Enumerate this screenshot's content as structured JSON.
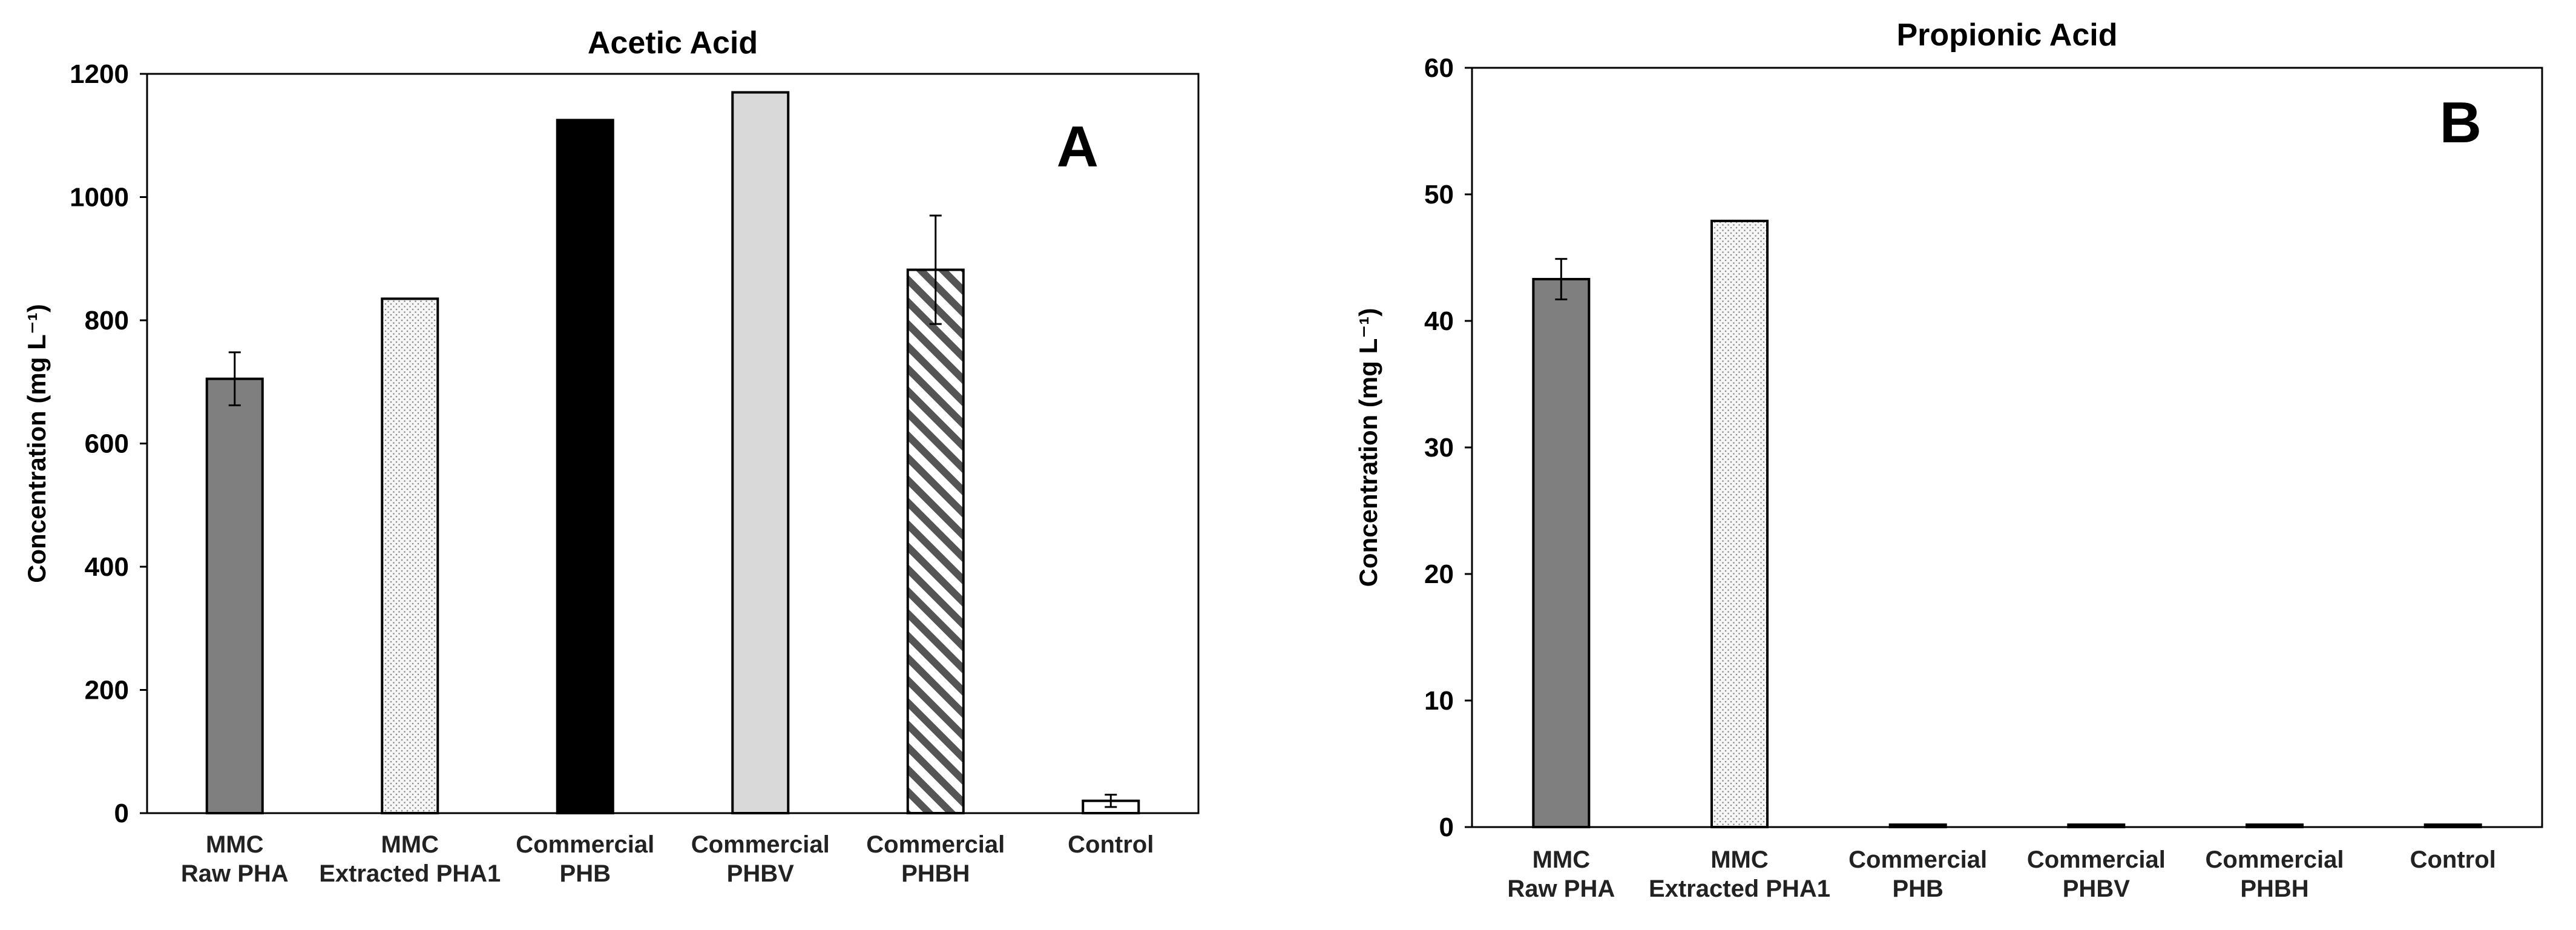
{
  "chart_data": [
    {
      "type": "bar",
      "panel_label": "A",
      "title": "Acetic Acid",
      "ylabel": "Concentration (mg L⁻¹)",
      "xlabel": "",
      "ylim": [
        0,
        1200
      ],
      "yticks": [
        0,
        200,
        400,
        600,
        800,
        1000,
        1200
      ],
      "grid": false,
      "categories": [
        [
          "MMC",
          "Raw PHA"
        ],
        [
          "MMC",
          "Extracted PHA1"
        ],
        [
          "Commercial",
          "PHB"
        ],
        [
          "Commercial",
          "PHBV"
        ],
        [
          "Commercial",
          "PHBH"
        ],
        [
          "Control"
        ]
      ],
      "values": [
        705,
        835,
        1125,
        1170,
        882,
        20
      ],
      "errors": [
        43,
        null,
        null,
        null,
        88,
        10
      ],
      "fills": [
        "dark-gray",
        "dotted",
        "black",
        "light-gray",
        "diagonal-hatch",
        "white"
      ]
    },
    {
      "type": "bar",
      "panel_label": "B",
      "title": "Propionic Acid",
      "ylabel": "Concentration (mg L⁻¹)",
      "xlabel": "",
      "ylim": [
        0,
        60
      ],
      "yticks": [
        0,
        10,
        20,
        30,
        40,
        50,
        60
      ],
      "grid": false,
      "categories": [
        [
          "MMC",
          "Raw PHA"
        ],
        [
          "MMC",
          "Extracted PHA1"
        ],
        [
          "Commercial",
          "PHB"
        ],
        [
          "Commercial",
          "PHBV"
        ],
        [
          "Commercial",
          "PHBH"
        ],
        [
          "Control"
        ]
      ],
      "values": [
        43.3,
        47.9,
        0,
        0,
        0,
        0
      ],
      "errors": [
        1.6,
        null,
        null,
        null,
        null,
        null
      ],
      "fills": [
        "dark-gray",
        "dotted",
        "black",
        "light-gray",
        "diagonal-hatch",
        "white"
      ]
    }
  ]
}
